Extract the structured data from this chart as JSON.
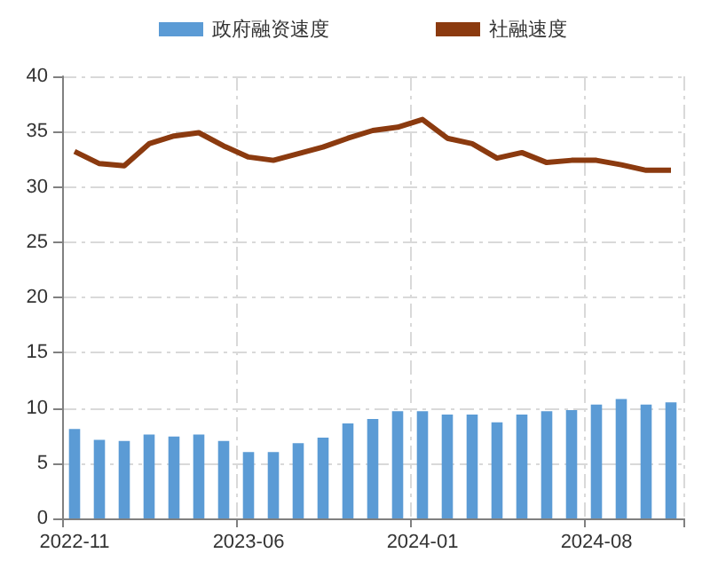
{
  "chart_data": {
    "type": "bar",
    "categories": [
      "2022-11",
      null,
      null,
      null,
      null,
      null,
      null,
      "2023-06",
      null,
      null,
      null,
      null,
      null,
      null,
      "2024-01",
      null,
      null,
      null,
      null,
      null,
      null,
      "2024-08",
      null,
      null,
      null
    ],
    "series": [
      {
        "name": "政府融资速度",
        "color": "#5b9bd5",
        "values": [
          8.1,
          7.1,
          7.0,
          7.6,
          7.4,
          7.6,
          7.0,
          6.0,
          6.0,
          6.8,
          7.3,
          8.6,
          9.0,
          9.7,
          9.7,
          9.4,
          9.4,
          8.7,
          9.4,
          9.7,
          9.8,
          10.3,
          10.8,
          10.3,
          10.5
        ]
      },
      {
        "name": "社融速度",
        "type": "line",
        "color": "#8b3a0f",
        "values": [
          33.2,
          32.1,
          31.9,
          33.9,
          34.6,
          34.9,
          33.7,
          32.7,
          32.4,
          33.0,
          33.6,
          34.4,
          35.1,
          35.4,
          36.1,
          34.4,
          33.9,
          32.6,
          33.1,
          32.2,
          32.4,
          32.4,
          32.0,
          31.5,
          31.5
        ]
      }
    ],
    "ylim": [
      0,
      40
    ],
    "yticks": [
      0,
      5,
      10,
      15,
      20,
      25,
      30,
      35,
      40
    ],
    "grid": true,
    "legend": "top",
    "marker": "none",
    "line_style": "solid"
  }
}
